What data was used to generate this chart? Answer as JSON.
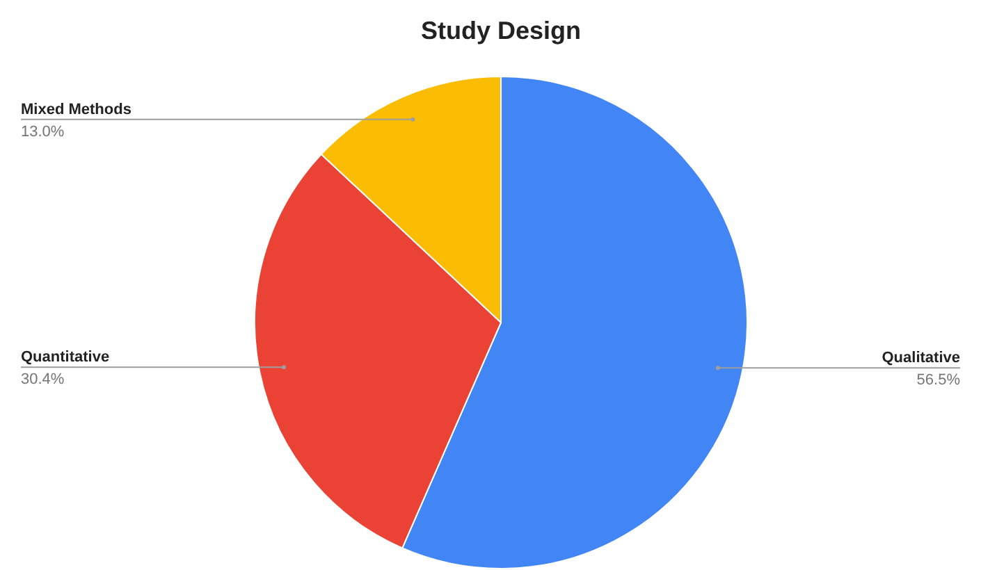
{
  "chart_data": {
    "type": "pie",
    "title": "Study Design",
    "categories": [
      "Qualitative",
      "Quantitative",
      "Mixed Methods"
    ],
    "values": [
      56.5,
      30.4,
      13.0
    ],
    "value_labels": [
      "56.5%",
      "30.4%",
      "13.0%"
    ],
    "colors": [
      "#4285f4",
      "#ea4335",
      "#fbbc04"
    ],
    "legend": false
  }
}
